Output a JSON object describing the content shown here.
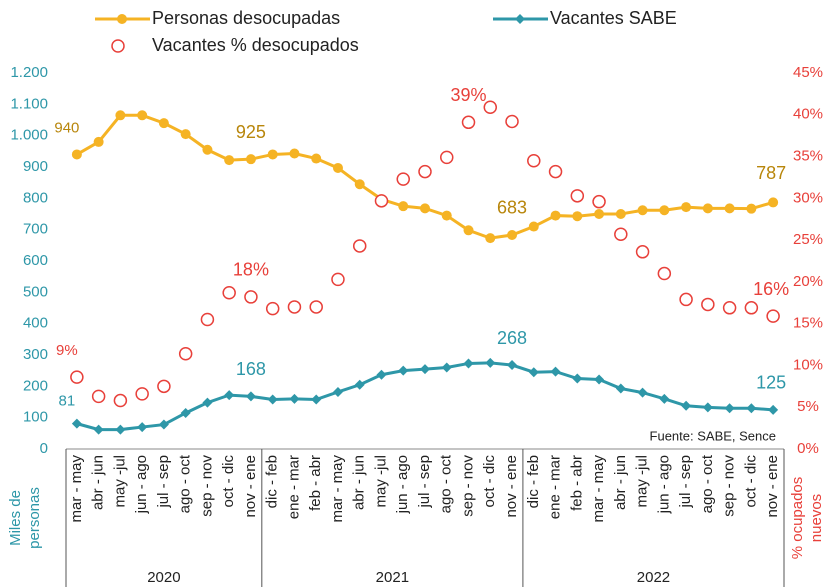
{
  "chart_data": {
    "type": "line",
    "categories": [
      "mar - may",
      "abr - jun",
      "may -jul",
      "jun - ago",
      "jul - sep",
      "ago - oct",
      "sep - nov",
      "oct - dic",
      "nov - ene",
      "dic - feb",
      "ene - mar",
      "feb - abr",
      "mar - may",
      "abr - jun",
      "may -jul",
      "jun - ago",
      "jul - sep",
      "ago - oct",
      "sep - nov",
      "oct - dic",
      "nov - ene",
      "dic - feb",
      "ene - mar",
      "feb - abr",
      "mar - may",
      "abr - jun",
      "may -jul",
      "jun - ago",
      "jul - sep",
      "ago - oct",
      "sep - nov",
      "oct - dic",
      "nov - ene"
    ],
    "year_groups": [
      {
        "label": "2020",
        "start": 0,
        "end": 8
      },
      {
        "label": "2021",
        "start": 9,
        "end": 20
      },
      {
        "label": "2022",
        "start": 21,
        "end": 32
      }
    ],
    "series": [
      {
        "name": "Personas desocupadas",
        "type": "line",
        "marker": "circle",
        "color": "#f5b324",
        "label_color": "#b8860b",
        "values": [
          940,
          980,
          1065,
          1065,
          1040,
          1005,
          955,
          922,
          925,
          940,
          943,
          927,
          897,
          845,
          797,
          775,
          768,
          745,
          698,
          673,
          683,
          710,
          745,
          743,
          750,
          750,
          762,
          762,
          772,
          768,
          768,
          767,
          787
        ],
        "value_labels": [
          "940",
          null,
          null,
          null,
          null,
          null,
          null,
          null,
          "925",
          null,
          null,
          null,
          null,
          null,
          null,
          null,
          null,
          null,
          null,
          null,
          "683",
          null,
          null,
          null,
          null,
          null,
          null,
          null,
          null,
          null,
          null,
          null,
          "787"
        ]
      },
      {
        "name": "Vacantes SABE",
        "type": "line",
        "marker": "diamond",
        "color": "#2e97a8",
        "label_color": "#2e97a8",
        "values": [
          81,
          62,
          62,
          70,
          78,
          115,
          148,
          172,
          168,
          158,
          160,
          158,
          182,
          205,
          237,
          250,
          255,
          260,
          273,
          275,
          268,
          245,
          247,
          225,
          222,
          193,
          180,
          160,
          138,
          133,
          130,
          130,
          125
        ],
        "value_labels": [
          "81",
          null,
          null,
          null,
          null,
          null,
          null,
          null,
          "168",
          null,
          null,
          null,
          null,
          null,
          null,
          null,
          null,
          null,
          null,
          null,
          "268",
          null,
          null,
          null,
          null,
          null,
          null,
          null,
          null,
          null,
          null,
          null,
          "125"
        ]
      },
      {
        "name": "Vacantes % desocupados",
        "type": "scatter",
        "marker": "open-circle",
        "color": "#e8403a",
        "label_color": "#e8403a",
        "axis": "y2",
        "values": [
          8.6,
          6.3,
          5.8,
          6.6,
          7.5,
          11.4,
          15.5,
          18.7,
          18.2,
          16.8,
          17.0,
          17.0,
          20.3,
          24.3,
          29.7,
          32.3,
          33.2,
          34.9,
          39.1,
          40.9,
          39.2,
          34.5,
          33.2,
          30.3,
          29.6,
          25.7,
          23.6,
          21.0,
          17.9,
          17.3,
          16.9,
          16.9,
          15.9
        ],
        "value_labels": [
          "9%",
          null,
          null,
          null,
          null,
          null,
          null,
          null,
          "18%",
          null,
          null,
          null,
          null,
          null,
          null,
          null,
          null,
          null,
          "39%",
          null,
          null,
          null,
          null,
          null,
          null,
          null,
          null,
          null,
          null,
          null,
          null,
          null,
          "16%"
        ]
      }
    ],
    "ylim": [
      0,
      1200
    ],
    "yticks": [
      0,
      100,
      200,
      300,
      400,
      500,
      600,
      700,
      800,
      900,
      {
        "value": 1000,
        "label": "1.000"
      },
      {
        "value": 1100,
        "label": "1.100"
      },
      {
        "value": 1200,
        "label": "1.200"
      }
    ],
    "y2lim": [
      0,
      45
    ],
    "y2ticks": [
      {
        "value": 0,
        "label": "0%"
      },
      {
        "value": 5,
        "label": "5%"
      },
      {
        "value": 10,
        "label": "10%"
      },
      {
        "value": 15,
        "label": "15%"
      },
      {
        "value": 20,
        "label": "20%"
      },
      {
        "value": 25,
        "label": "25%"
      },
      {
        "value": 30,
        "label": "30%"
      },
      {
        "value": 35,
        "label": "35%"
      },
      {
        "value": 40,
        "label": "40%"
      },
      {
        "value": 45,
        "label": "45%"
      }
    ],
    "ylabel": [
      "Miles de",
      "personas"
    ],
    "y2label": [
      "% ocupados",
      "nuevos"
    ],
    "source": "Fuente: SABE, Sence",
    "grid": false
  }
}
